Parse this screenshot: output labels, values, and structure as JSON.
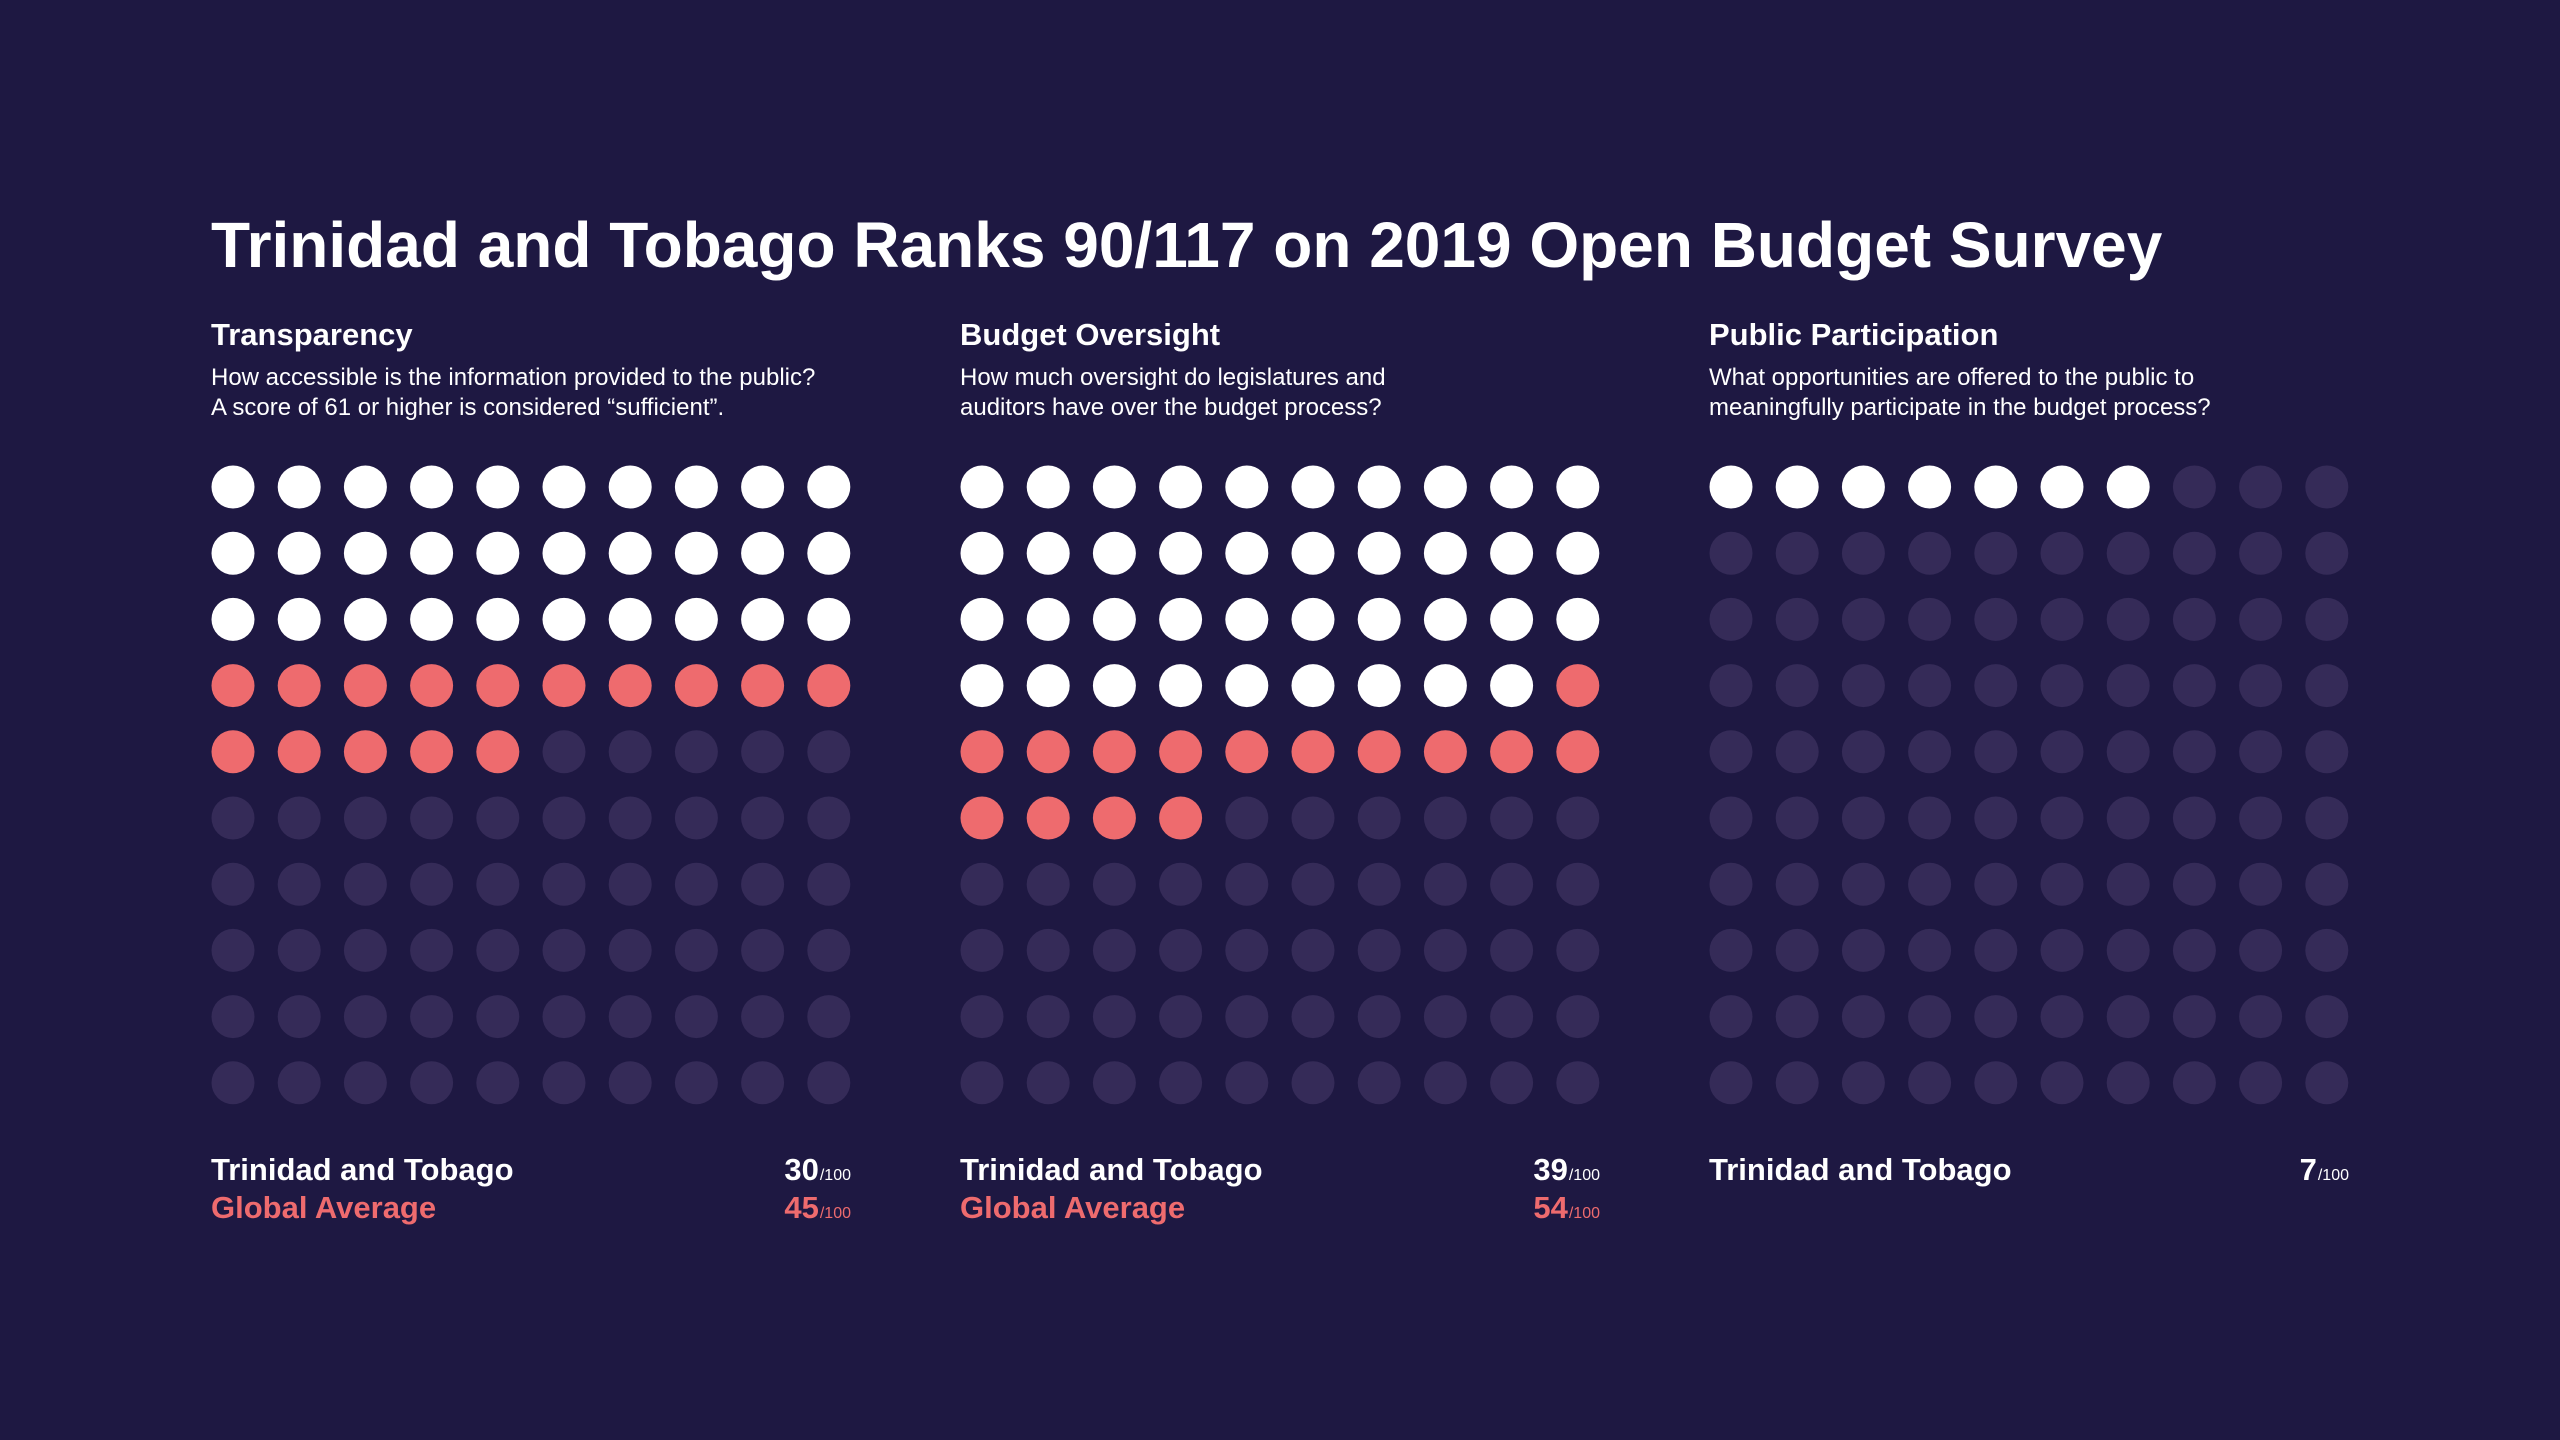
{
  "title": "Trinidad and Tobago Ranks 90/117 on 2019 Open Budget Survey",
  "colors": {
    "background": "#1e1842",
    "country": "#ffffff",
    "global_average": "#ee6b6e",
    "empty": "#352b58"
  },
  "panels": [
    {
      "heading": "Transparency",
      "description": "How accessible is the information provided to the public?\nA score of 61 or higher is considered “sufficient”.",
      "country_label": "Trinidad and Tobago",
      "country_score": "30",
      "average_label": "Global Average",
      "average_score": "45",
      "denominator": "/100"
    },
    {
      "heading": "Budget Oversight",
      "description": "How much oversight do legislatures and\nauditors have over the budget process?",
      "country_label": "Trinidad and Tobago",
      "country_score": "39",
      "average_label": "Global Average",
      "average_score": "54",
      "denominator": "/100"
    },
    {
      "heading": "Public Participation",
      "description": "What opportunities are offered to the public to\nmeaningfully participate in the budget process?",
      "country_label": "Trinidad and Tobago",
      "country_score": "7",
      "denominator": "/100"
    }
  ],
  "chart_data": [
    {
      "type": "waffle",
      "title": "Transparency",
      "total": 100,
      "grid": [
        10,
        10
      ],
      "series": [
        {
          "name": "Trinidad and Tobago",
          "value": 30
        },
        {
          "name": "Global Average",
          "value": 45
        }
      ]
    },
    {
      "type": "waffle",
      "title": "Budget Oversight",
      "total": 100,
      "grid": [
        10,
        10
      ],
      "series": [
        {
          "name": "Trinidad and Tobago",
          "value": 39
        },
        {
          "name": "Global Average",
          "value": 54
        }
      ]
    },
    {
      "type": "waffle",
      "title": "Public Participation",
      "total": 100,
      "grid": [
        10,
        10
      ],
      "series": [
        {
          "name": "Trinidad and Tobago",
          "value": 7
        }
      ]
    }
  ]
}
